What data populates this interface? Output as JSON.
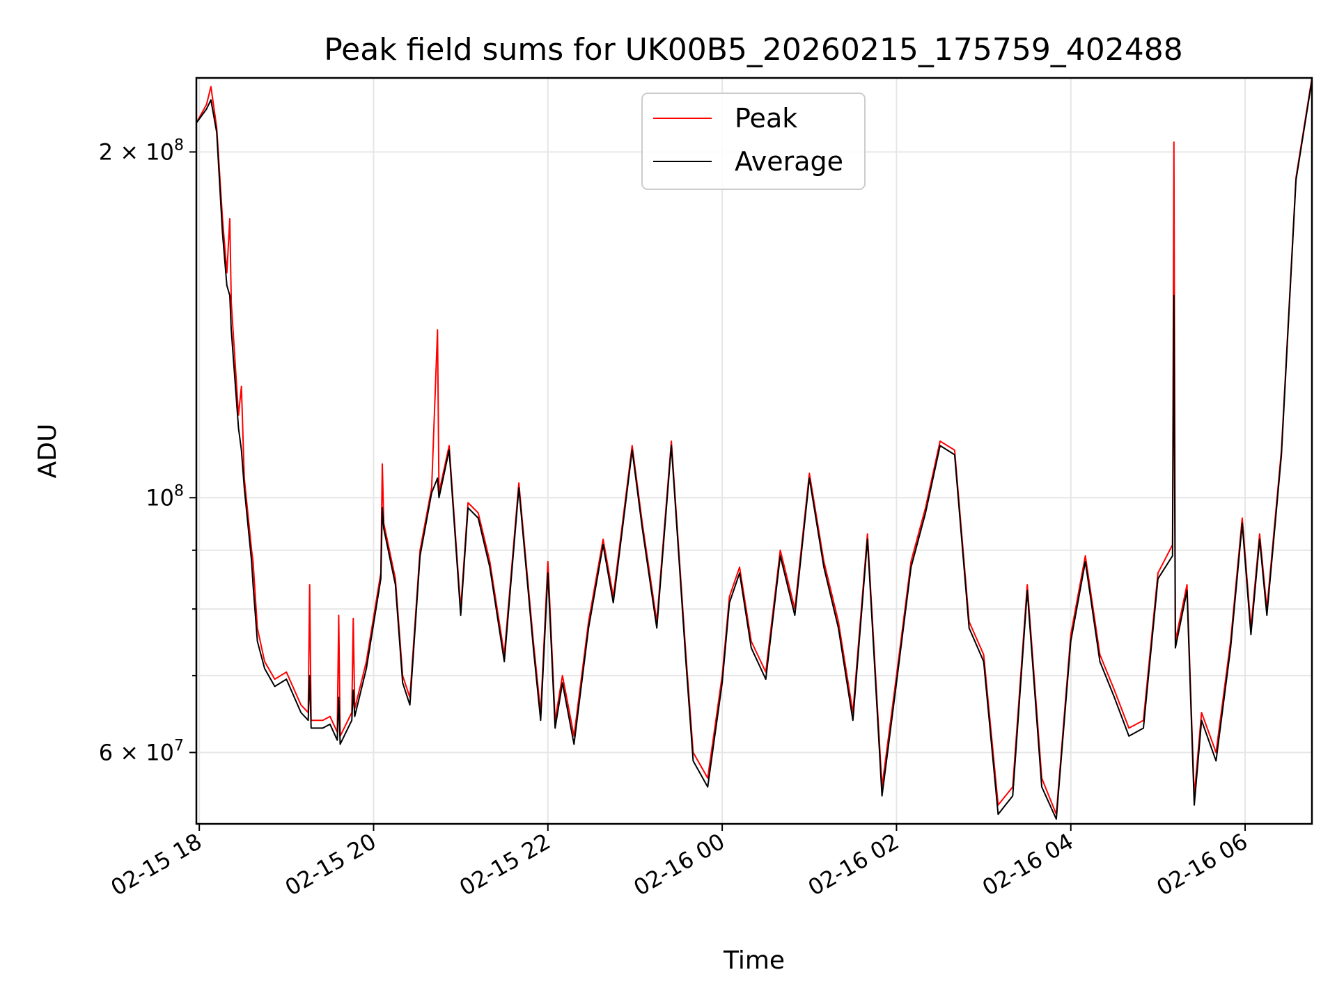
{
  "chart_data": {
    "type": "line",
    "title": "Peak field sums for UK00B5_20260215_175759_402488",
    "xlabel": "Time",
    "ylabel": "ADU",
    "y_scale": "log",
    "ylim": [
      52000000,
      232000000
    ],
    "xlim": [
      "2026-02-15 17:58",
      "2026-02-16 06:46"
    ],
    "x_ticks": [
      {
        "label": "02-15 18",
        "time": "2026-02-15 18:00"
      },
      {
        "label": "02-15 20",
        "time": "2026-02-15 20:00"
      },
      {
        "label": "02-15 22",
        "time": "2026-02-15 22:00"
      },
      {
        "label": "02-16 00",
        "time": "2026-02-16 00:00"
      },
      {
        "label": "02-16 02",
        "time": "2026-02-16 02:00"
      },
      {
        "label": "02-16 04",
        "time": "2026-02-16 04:00"
      },
      {
        "label": "02-16 06",
        "time": "2026-02-16 06:00"
      }
    ],
    "y_ticks_major": [
      {
        "value": 60000000,
        "base": "6",
        "exponent": "7"
      },
      {
        "value": 100000000,
        "base": "",
        "exponent": "8"
      },
      {
        "value": 200000000,
        "base": "2",
        "exponent": "8"
      }
    ],
    "y_ticks_minor": [
      70000000,
      80000000,
      90000000
    ],
    "grid": true,
    "legend_position": "top-center",
    "series": [
      {
        "name": "Peak",
        "color": "#ff0000",
        "points": [
          [
            "2026-02-15 17:58",
            212000000
          ],
          [
            "2026-02-15 18:05",
            220000000
          ],
          [
            "2026-02-15 18:08",
            228000000
          ],
          [
            "2026-02-15 18:12",
            210000000
          ],
          [
            "2026-02-15 18:16",
            175000000
          ],
          [
            "2026-02-15 18:19",
            157000000
          ],
          [
            "2026-02-15 18:21",
            175000000
          ],
          [
            "2026-02-15 18:22",
            148000000
          ],
          [
            "2026-02-15 18:27",
            118000000
          ],
          [
            "2026-02-15 18:29",
            125000000
          ],
          [
            "2026-02-15 18:31",
            104000000
          ],
          [
            "2026-02-15 18:36",
            90000000
          ],
          [
            "2026-02-15 18:37",
            88000000
          ],
          [
            "2026-02-15 18:40",
            77000000
          ],
          [
            "2026-02-15 18:45",
            72000000
          ],
          [
            "2026-02-15 18:52",
            69500000
          ],
          [
            "2026-02-15 19:00",
            70500000
          ],
          [
            "2026-02-15 19:10",
            66000000
          ],
          [
            "2026-02-15 19:15",
            65000000
          ],
          [
            "2026-02-15 19:16",
            84000000
          ],
          [
            "2026-02-15 19:17",
            64000000
          ],
          [
            "2026-02-15 19:25",
            64000000
          ],
          [
            "2026-02-15 19:30",
            64500000
          ],
          [
            "2026-02-15 19:35",
            62500000
          ],
          [
            "2026-02-15 19:36",
            79000000
          ],
          [
            "2026-02-15 19:37",
            62000000
          ],
          [
            "2026-02-15 19:45",
            65000000
          ],
          [
            "2026-02-15 19:46",
            78500000
          ],
          [
            "2026-02-15 19:47",
            65500000
          ],
          [
            "2026-02-15 19:55",
            72000000
          ],
          [
            "2026-02-15 20:05",
            86000000
          ],
          [
            "2026-02-15 20:06",
            107000000
          ],
          [
            "2026-02-15 20:07",
            95000000
          ],
          [
            "2026-02-15 20:15",
            85000000
          ],
          [
            "2026-02-15 20:20",
            70000000
          ],
          [
            "2026-02-15 20:25",
            67000000
          ],
          [
            "2026-02-15 20:32",
            90000000
          ],
          [
            "2026-02-15 20:40",
            102000000
          ],
          [
            "2026-02-15 20:44",
            140000000
          ],
          [
            "2026-02-15 20:45",
            101000000
          ],
          [
            "2026-02-15 20:52",
            111000000
          ],
          [
            "2026-02-15 21:00",
            80000000
          ],
          [
            "2026-02-15 21:05",
            99000000
          ],
          [
            "2026-02-15 21:12",
            97000000
          ],
          [
            "2026-02-15 21:20",
            88000000
          ],
          [
            "2026-02-15 21:30",
            73000000
          ],
          [
            "2026-02-15 21:40",
            103000000
          ],
          [
            "2026-02-15 21:50",
            75000000
          ],
          [
            "2026-02-15 21:55",
            65000000
          ],
          [
            "2026-02-15 22:00",
            88000000
          ],
          [
            "2026-02-15 22:05",
            64000000
          ],
          [
            "2026-02-15 22:10",
            70000000
          ],
          [
            "2026-02-15 22:18",
            62000000
          ],
          [
            "2026-02-15 22:28",
            78000000
          ],
          [
            "2026-02-15 22:38",
            92000000
          ],
          [
            "2026-02-15 22:45",
            82000000
          ],
          [
            "2026-02-15 22:58",
            111000000
          ],
          [
            "2026-02-15 23:05",
            95000000
          ],
          [
            "2026-02-15 23:15",
            78000000
          ],
          [
            "2026-02-15 23:25",
            112000000
          ],
          [
            "2026-02-15 23:35",
            73000000
          ],
          [
            "2026-02-15 23:40",
            60000000
          ],
          [
            "2026-02-15 23:50",
            57000000
          ],
          [
            "2026-02-16 00:00",
            70000000
          ],
          [
            "2026-02-16 00:05",
            82000000
          ],
          [
            "2026-02-16 00:12",
            87000000
          ],
          [
            "2026-02-16 00:20",
            75000000
          ],
          [
            "2026-02-16 00:30",
            70500000
          ],
          [
            "2026-02-16 00:40",
            90000000
          ],
          [
            "2026-02-16 00:50",
            80000000
          ],
          [
            "2026-02-16 01:00",
            105000000
          ],
          [
            "2026-02-16 01:10",
            88000000
          ],
          [
            "2026-02-16 01:20",
            78000000
          ],
          [
            "2026-02-16 01:30",
            65000000
          ],
          [
            "2026-02-16 01:40",
            93000000
          ],
          [
            "2026-02-16 01:50",
            56000000
          ],
          [
            "2026-02-16 02:00",
            70000000
          ],
          [
            "2026-02-16 02:10",
            88000000
          ],
          [
            "2026-02-16 02:20",
            98000000
          ],
          [
            "2026-02-16 02:30",
            112000000
          ],
          [
            "2026-02-16 02:40",
            110000000
          ],
          [
            "2026-02-16 02:50",
            78000000
          ],
          [
            "2026-02-16 03:00",
            73000000
          ],
          [
            "2026-02-16 03:10",
            54000000
          ],
          [
            "2026-02-16 03:20",
            56000000
          ],
          [
            "2026-02-16 03:30",
            84000000
          ],
          [
            "2026-02-16 03:40",
            57000000
          ],
          [
            "2026-02-16 03:50",
            53000000
          ],
          [
            "2026-02-16 04:00",
            76000000
          ],
          [
            "2026-02-16 04:10",
            89000000
          ],
          [
            "2026-02-16 04:20",
            73000000
          ],
          [
            "2026-02-16 04:30",
            68000000
          ],
          [
            "2026-02-16 04:40",
            63000000
          ],
          [
            "2026-02-16 04:50",
            64000000
          ],
          [
            "2026-02-16 05:00",
            86000000
          ],
          [
            "2026-02-16 05:10",
            91000000
          ],
          [
            "2026-02-16 05:11",
            204000000
          ],
          [
            "2026-02-16 05:12",
            75000000
          ],
          [
            "2026-02-16 05:20",
            84000000
          ],
          [
            "2026-02-16 05:25",
            55000000
          ],
          [
            "2026-02-16 05:30",
            65000000
          ],
          [
            "2026-02-16 05:40",
            60000000
          ],
          [
            "2026-02-16 05:50",
            75000000
          ],
          [
            "2026-02-16 05:58",
            96000000
          ],
          [
            "2026-02-16 06:04",
            77000000
          ],
          [
            "2026-02-16 06:10",
            93000000
          ],
          [
            "2026-02-16 06:15",
            80000000
          ],
          [
            "2026-02-16 06:25",
            110000000
          ],
          [
            "2026-02-16 06:35",
            190000000
          ],
          [
            "2026-02-16 06:46",
            232000000
          ]
        ]
      },
      {
        "name": "Average",
        "color": "#000000",
        "points": [
          [
            "2026-02-15 17:58",
            212000000
          ],
          [
            "2026-02-15 18:05",
            218000000
          ],
          [
            "2026-02-15 18:08",
            222000000
          ],
          [
            "2026-02-15 18:12",
            208000000
          ],
          [
            "2026-02-15 18:16",
            170000000
          ],
          [
            "2026-02-15 18:19",
            153000000
          ],
          [
            "2026-02-15 18:21",
            150000000
          ],
          [
            "2026-02-15 18:22",
            140000000
          ],
          [
            "2026-02-15 18:27",
            115000000
          ],
          [
            "2026-02-15 18:29",
            110000000
          ],
          [
            "2026-02-15 18:31",
            102000000
          ],
          [
            "2026-02-15 18:36",
            88000000
          ],
          [
            "2026-02-15 18:37",
            84000000
          ],
          [
            "2026-02-15 18:40",
            75000000
          ],
          [
            "2026-02-15 18:45",
            71000000
          ],
          [
            "2026-02-15 18:52",
            68500000
          ],
          [
            "2026-02-15 19:00",
            69500000
          ],
          [
            "2026-02-15 19:10",
            65000000
          ],
          [
            "2026-02-15 19:15",
            64000000
          ],
          [
            "2026-02-15 19:16",
            70000000
          ],
          [
            "2026-02-15 19:17",
            63000000
          ],
          [
            "2026-02-15 19:25",
            63000000
          ],
          [
            "2026-02-15 19:30",
            63500000
          ],
          [
            "2026-02-15 19:35",
            61500000
          ],
          [
            "2026-02-15 19:36",
            67000000
          ],
          [
            "2026-02-15 19:37",
            61000000
          ],
          [
            "2026-02-15 19:45",
            64000000
          ],
          [
            "2026-02-15 19:46",
            68000000
          ],
          [
            "2026-02-15 19:47",
            64500000
          ],
          [
            "2026-02-15 19:55",
            71000000
          ],
          [
            "2026-02-15 20:05",
            85000000
          ],
          [
            "2026-02-15 20:06",
            98000000
          ],
          [
            "2026-02-15 20:07",
            94000000
          ],
          [
            "2026-02-15 20:15",
            84000000
          ],
          [
            "2026-02-15 20:20",
            69000000
          ],
          [
            "2026-02-15 20:25",
            66000000
          ],
          [
            "2026-02-15 20:32",
            89000000
          ],
          [
            "2026-02-15 20:40",
            101000000
          ],
          [
            "2026-02-15 20:44",
            104000000
          ],
          [
            "2026-02-15 20:45",
            100000000
          ],
          [
            "2026-02-15 20:52",
            110000000
          ],
          [
            "2026-02-15 21:00",
            79000000
          ],
          [
            "2026-02-15 21:05",
            98000000
          ],
          [
            "2026-02-15 21:12",
            96000000
          ],
          [
            "2026-02-15 21:20",
            87000000
          ],
          [
            "2026-02-15 21:30",
            72000000
          ],
          [
            "2026-02-15 21:40",
            102000000
          ],
          [
            "2026-02-15 21:50",
            74000000
          ],
          [
            "2026-02-15 21:55",
            64000000
          ],
          [
            "2026-02-15 22:00",
            86000000
          ],
          [
            "2026-02-15 22:05",
            63000000
          ],
          [
            "2026-02-15 22:10",
            69000000
          ],
          [
            "2026-02-15 22:18",
            61000000
          ],
          [
            "2026-02-15 22:28",
            77000000
          ],
          [
            "2026-02-15 22:38",
            91000000
          ],
          [
            "2026-02-15 22:45",
            81000000
          ],
          [
            "2026-02-15 22:58",
            110000000
          ],
          [
            "2026-02-15 23:05",
            94000000
          ],
          [
            "2026-02-15 23:15",
            77000000
          ],
          [
            "2026-02-15 23:25",
            111000000
          ],
          [
            "2026-02-15 23:35",
            72000000
          ],
          [
            "2026-02-15 23:40",
            59000000
          ],
          [
            "2026-02-15 23:50",
            56000000
          ],
          [
            "2026-02-16 00:00",
            69000000
          ],
          [
            "2026-02-16 00:05",
            81000000
          ],
          [
            "2026-02-16 00:12",
            86000000
          ],
          [
            "2026-02-16 00:20",
            74000000
          ],
          [
            "2026-02-16 00:30",
            69500000
          ],
          [
            "2026-02-16 00:40",
            89000000
          ],
          [
            "2026-02-16 00:50",
            79000000
          ],
          [
            "2026-02-16 01:00",
            104000000
          ],
          [
            "2026-02-16 01:10",
            87000000
          ],
          [
            "2026-02-16 01:20",
            77000000
          ],
          [
            "2026-02-16 01:30",
            64000000
          ],
          [
            "2026-02-16 01:40",
            92000000
          ],
          [
            "2026-02-16 01:50",
            55000000
          ],
          [
            "2026-02-16 02:00",
            69000000
          ],
          [
            "2026-02-16 02:10",
            87000000
          ],
          [
            "2026-02-16 02:20",
            97000000
          ],
          [
            "2026-02-16 02:30",
            111000000
          ],
          [
            "2026-02-16 02:40",
            109000000
          ],
          [
            "2026-02-16 02:50",
            77000000
          ],
          [
            "2026-02-16 03:00",
            72000000
          ],
          [
            "2026-02-16 03:10",
            53000000
          ],
          [
            "2026-02-16 03:20",
            55000000
          ],
          [
            "2026-02-16 03:30",
            83000000
          ],
          [
            "2026-02-16 03:40",
            56000000
          ],
          [
            "2026-02-16 03:50",
            52500000
          ],
          [
            "2026-02-16 04:00",
            75000000
          ],
          [
            "2026-02-16 04:10",
            88000000
          ],
          [
            "2026-02-16 04:20",
            72000000
          ],
          [
            "2026-02-16 04:30",
            67000000
          ],
          [
            "2026-02-16 04:40",
            62000000
          ],
          [
            "2026-02-16 04:50",
            63000000
          ],
          [
            "2026-02-16 05:00",
            85000000
          ],
          [
            "2026-02-16 05:10",
            89000000
          ],
          [
            "2026-02-16 05:11",
            150000000
          ],
          [
            "2026-02-16 05:12",
            74000000
          ],
          [
            "2026-02-16 05:20",
            83000000
          ],
          [
            "2026-02-16 05:25",
            54000000
          ],
          [
            "2026-02-16 05:30",
            64000000
          ],
          [
            "2026-02-16 05:40",
            59000000
          ],
          [
            "2026-02-16 05:50",
            74000000
          ],
          [
            "2026-02-16 05:58",
            95000000
          ],
          [
            "2026-02-16 06:04",
            76000000
          ],
          [
            "2026-02-16 06:10",
            92000000
          ],
          [
            "2026-02-16 06:15",
            79000000
          ],
          [
            "2026-02-16 06:25",
            109000000
          ],
          [
            "2026-02-16 06:35",
            189000000
          ],
          [
            "2026-02-16 06:46",
            231000000
          ]
        ]
      }
    ]
  }
}
